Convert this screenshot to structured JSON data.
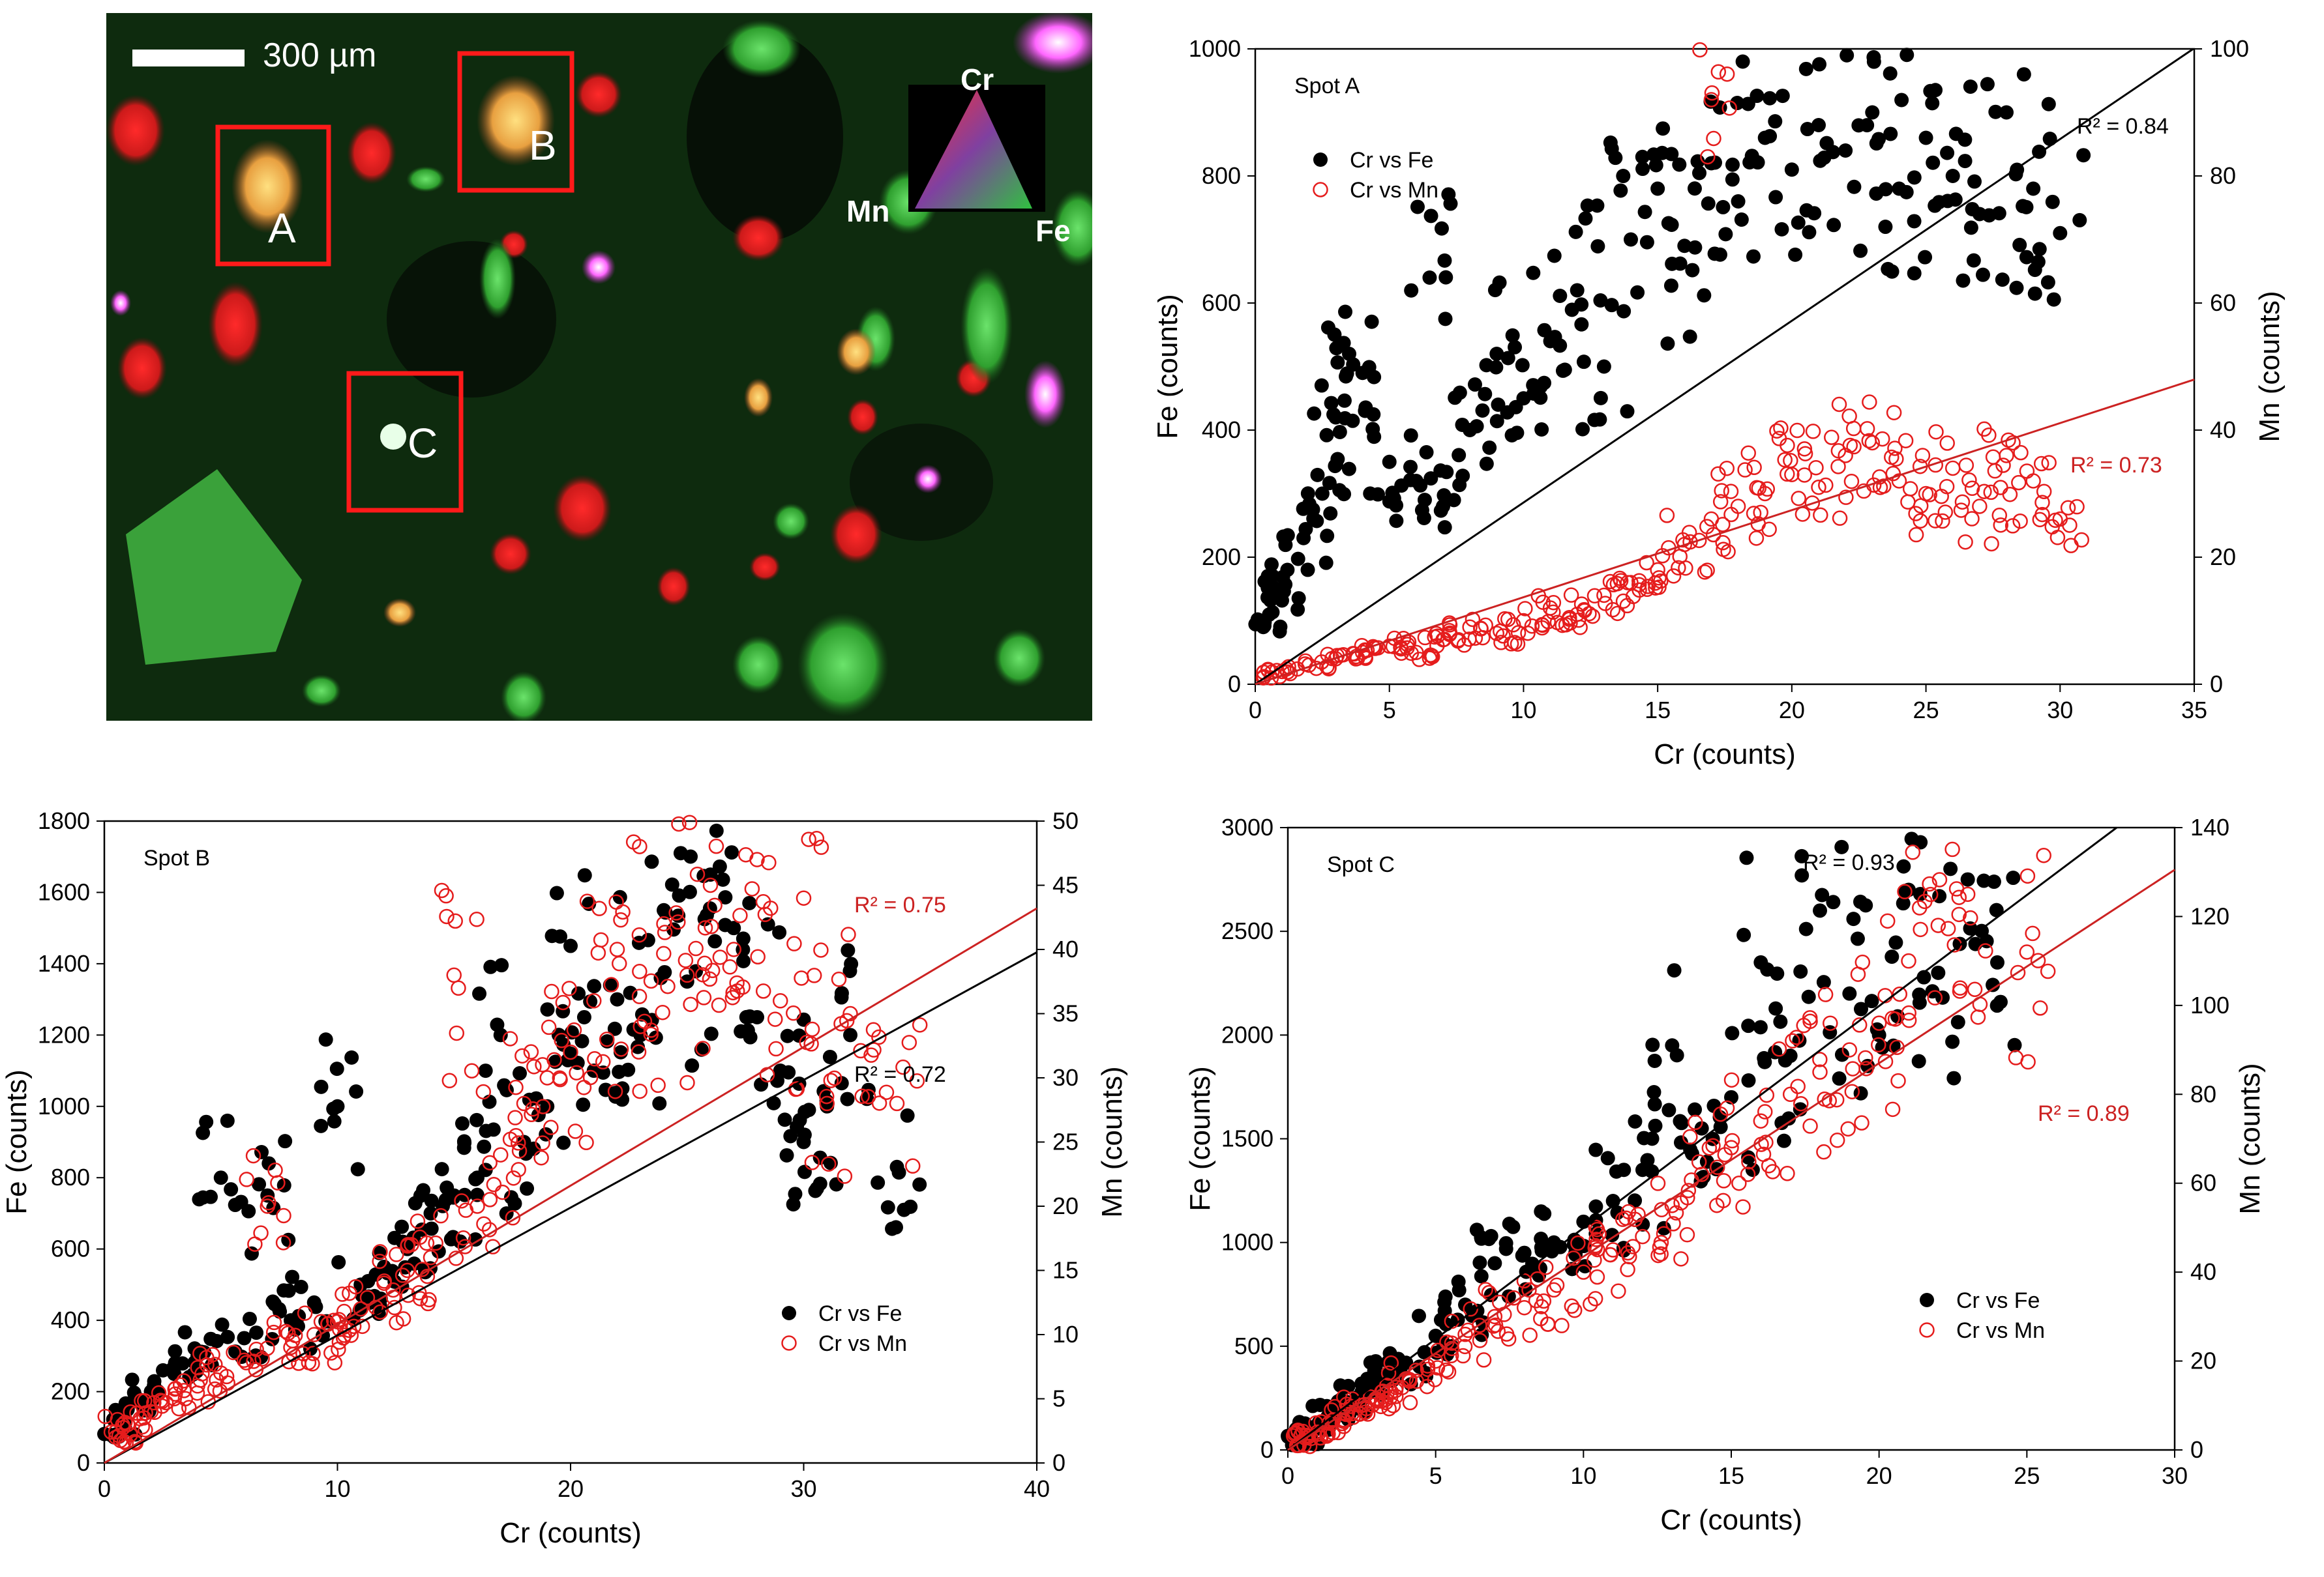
{
  "colors": {
    "fe_marker": "#000000",
    "mn_marker": "#e51c1c",
    "fe_line": "#000000",
    "mn_line": "#cc2222",
    "box": "#ff1a1a",
    "map_bg": "#0d2a0d"
  },
  "map": {
    "scale_label": "300 µm",
    "spot_labels": [
      "A",
      "B",
      "C"
    ],
    "legend": {
      "top": "Cr",
      "left": "Mn",
      "right": "Fe"
    }
  },
  "chart_data": [
    {
      "id": "A",
      "type": "scatter",
      "title": "Spot A",
      "xlabel": "Cr (counts)",
      "ylabel": "Fe (counts)",
      "y2label": "Mn (counts)",
      "xlim": [
        0,
        35
      ],
      "xticks": [
        0,
        5,
        10,
        15,
        20,
        25,
        30,
        35
      ],
      "ylim": [
        0,
        1000
      ],
      "yticks": [
        0,
        200,
        400,
        600,
        800,
        1000
      ],
      "y2lim": [
        0,
        100
      ],
      "y2ticks": [
        0,
        20,
        40,
        60,
        80,
        100
      ],
      "legend": [
        "Cr vs Fe",
        "Cr vs Mn"
      ],
      "legend_position": "top-left",
      "r2": {
        "fe": "R² = 0.84",
        "mn": "R² = 0.73"
      },
      "series": [
        {
          "name": "Cr vs Fe",
          "axis": "left",
          "marker": "filled",
          "fit": {
            "slope": 28.6,
            "intercept": 0
          },
          "points": [
            [
              0.3,
              90
            ],
            [
              0.8,
              140
            ],
            [
              1.2,
              180
            ],
            [
              1.8,
              230
            ],
            [
              2.5,
              300
            ],
            [
              3.0,
              420
            ],
            [
              3.5,
              520
            ],
            [
              4.0,
              490
            ],
            [
              5.0,
              350
            ],
            [
              6.0,
              320
            ],
            [
              6.5,
              640
            ],
            [
              7.0,
              280
            ],
            [
              8.0,
              400
            ],
            [
              9.0,
              520
            ],
            [
              10.0,
              450
            ],
            [
              11.0,
              540
            ],
            [
              12.0,
              620
            ],
            [
              13.0,
              500
            ],
            [
              14.0,
              700
            ],
            [
              15.0,
              780
            ],
            [
              16.0,
              690
            ],
            [
              17.0,
              820
            ],
            [
              18.0,
              760
            ],
            [
              19.0,
              860
            ],
            [
              20.0,
              810
            ],
            [
              21.0,
              880
            ],
            [
              22.0,
              840
            ],
            [
              23.0,
              900
            ],
            [
              24.0,
              780
            ],
            [
              25.0,
              860
            ],
            [
              26.0,
              800
            ],
            [
              27.0,
              740
            ],
            [
              28.0,
              900
            ],
            [
              29.0,
              780
            ],
            [
              30.0,
              710
            ]
          ]
        },
        {
          "name": "Cr vs Mn",
          "axis": "right",
          "marker": "open",
          "fit": {
            "slope": 1.37,
            "intercept": 0
          },
          "points": [
            [
              0.3,
              1
            ],
            [
              1.0,
              2
            ],
            [
              2.0,
              3
            ],
            [
              3.0,
              4
            ],
            [
              4.0,
              5
            ],
            [
              5.0,
              6
            ],
            [
              6.0,
              5
            ],
            [
              7.0,
              7
            ],
            [
              8.0,
              9
            ],
            [
              9.0,
              8
            ],
            [
              10.0,
              10
            ],
            [
              11.0,
              12
            ],
            [
              12.0,
              11
            ],
            [
              13.0,
              14
            ],
            [
              14.0,
              16
            ],
            [
              15.0,
              18
            ],
            [
              16.0,
              22
            ],
            [
              17.0,
              26
            ],
            [
              17.0,
              92
            ],
            [
              18.0,
              28
            ],
            [
              19.0,
              30
            ],
            [
              20.0,
              33
            ],
            [
              21.0,
              31
            ],
            [
              22.0,
              36
            ],
            [
              23.0,
              38
            ],
            [
              24.0,
              32
            ],
            [
              25.0,
              30
            ],
            [
              26.0,
              34
            ],
            [
              27.0,
              28
            ],
            [
              28.0,
              36
            ],
            [
              29.0,
              32
            ],
            [
              30.0,
              26
            ]
          ]
        }
      ]
    },
    {
      "id": "B",
      "type": "scatter",
      "title": "Spot B",
      "xlabel": "Cr (counts)",
      "ylabel": "Fe (counts)",
      "y2label": "Mn (counts)",
      "xlim": [
        0,
        40
      ],
      "xticks": [
        0,
        10,
        20,
        30,
        40
      ],
      "ylim": [
        0,
        1800
      ],
      "yticks": [
        0,
        200,
        400,
        600,
        800,
        1000,
        1200,
        1400,
        1600,
        1800
      ],
      "y2lim": [
        0,
        50
      ],
      "y2ticks": [
        0,
        5,
        10,
        15,
        20,
        25,
        30,
        35,
        40,
        45,
        50
      ],
      "legend": [
        "Cr vs Fe",
        "Cr vs Mn"
      ],
      "legend_position": "bottom-right",
      "r2": {
        "fe": "R² = 0.72",
        "mn": "R² = 0.75"
      },
      "series": [
        {
          "name": "Cr vs Fe",
          "axis": "left",
          "marker": "filled",
          "fit": {
            "slope": 35.8,
            "intercept": 0
          },
          "points": [
            [
              0.5,
              80
            ],
            [
              1.0,
              150
            ],
            [
              2.0,
              200
            ],
            [
              3.0,
              250
            ],
            [
              4.0,
              300
            ],
            [
              5.0,
              800
            ],
            [
              6.0,
              350
            ],
            [
              7.0,
              750
            ],
            [
              8.0,
              400
            ],
            [
              9.0,
              450
            ],
            [
              10.0,
              1000
            ],
            [
              11.0,
              500
            ],
            [
              12.0,
              550
            ],
            [
              13.0,
              600
            ],
            [
              14.0,
              700
            ],
            [
              15.0,
              750
            ],
            [
              16.0,
              800
            ],
            [
              17.0,
              1200
            ],
            [
              18.0,
              900
            ],
            [
              19.0,
              1000
            ],
            [
              20.0,
              1450
            ],
            [
              21.0,
              1100
            ],
            [
              22.0,
              1300
            ],
            [
              23.0,
              1200
            ],
            [
              24.0,
              1550
            ],
            [
              25.0,
              1350
            ],
            [
              26.0,
              1650
            ],
            [
              27.0,
              1500
            ],
            [
              28.0,
              1250
            ],
            [
              29.0,
              1100
            ],
            [
              30.0,
              900
            ],
            [
              31.0,
              1000
            ],
            [
              32.0,
              1200
            ],
            [
              34.0,
              830
            ]
          ]
        },
        {
          "name": "Cr vs Mn",
          "axis": "right",
          "marker": "open",
          "fit": {
            "slope": 1.08,
            "intercept": 0
          },
          "points": [
            [
              0.5,
              2
            ],
            [
              1.0,
              3
            ],
            [
              2.0,
              4
            ],
            [
              3.0,
              5
            ],
            [
              4.0,
              6
            ],
            [
              5.0,
              7
            ],
            [
              6.0,
              8
            ],
            [
              7.0,
              20
            ],
            [
              8.0,
              9
            ],
            [
              9.0,
              10
            ],
            [
              10.0,
              11
            ],
            [
              11.0,
              12
            ],
            [
              12.0,
              14
            ],
            [
              13.0,
              15
            ],
            [
              14.0,
              16
            ],
            [
              15.0,
              38
            ],
            [
              16.0,
              20
            ],
            [
              17.0,
              24
            ],
            [
              18.0,
              28
            ],
            [
              19.0,
              30
            ],
            [
              20.0,
              32
            ],
            [
              21.0,
              36
            ],
            [
              22.0,
              40
            ],
            [
              23.0,
              34
            ],
            [
              24.0,
              42
            ],
            [
              25.0,
              38
            ],
            [
              26.0,
              45
            ],
            [
              27.0,
              40
            ],
            [
              28.0,
              47
            ],
            [
              29.0,
              36
            ],
            [
              30.0,
              44
            ],
            [
              31.0,
              28
            ],
            [
              32.0,
              35
            ],
            [
              34.0,
              28
            ]
          ]
        }
      ]
    },
    {
      "id": "C",
      "type": "scatter",
      "title": "Spot C",
      "xlabel": "Cr (counts)",
      "ylabel": "Fe (counts)",
      "y2label": "Mn (counts)",
      "xlim": [
        0,
        30
      ],
      "xticks": [
        0,
        5,
        10,
        15,
        20,
        25,
        30
      ],
      "ylim": [
        0,
        3000
      ],
      "yticks": [
        0,
        500,
        1000,
        1500,
        2000,
        2500,
        3000
      ],
      "y2lim": [
        0,
        140
      ],
      "y2ticks": [
        0,
        20,
        40,
        60,
        80,
        100,
        120,
        140
      ],
      "legend": [
        "Cr vs Fe",
        "Cr vs Mn"
      ],
      "legend_position": "bottom-right",
      "r2": {
        "fe": "R² = 0.93",
        "mn": "R² = 0.89"
      },
      "series": [
        {
          "name": "Cr vs Fe",
          "axis": "left",
          "marker": "filled",
          "fit": {
            "slope": 107,
            "intercept": 0
          },
          "points": [
            [
              0.3,
              30
            ],
            [
              0.7,
              80
            ],
            [
              1.0,
              120
            ],
            [
              1.5,
              180
            ],
            [
              2.0,
              220
            ],
            [
              2.5,
              280
            ],
            [
              3.0,
              320
            ],
            [
              3.5,
              360
            ],
            [
              4.0,
              420
            ],
            [
              5.0,
              550
            ],
            [
              6.0,
              700
            ],
            [
              7.0,
              900
            ],
            [
              8.0,
              950
            ],
            [
              9.0,
              1000
            ],
            [
              10.0,
              1100
            ],
            [
              11.0,
              1200
            ],
            [
              12.0,
              1350
            ],
            [
              13.0,
              1950
            ],
            [
              14.0,
              1550
            ],
            [
              15.0,
              1700
            ],
            [
              16.0,
              2350
            ],
            [
              17.0,
              1900
            ],
            [
              18.0,
              2600
            ],
            [
              19.0,
              2200
            ],
            [
              20.0,
              2000
            ],
            [
              21.0,
              2700
            ],
            [
              22.0,
              2300
            ],
            [
              23.0,
              2750
            ],
            [
              24.0,
              2350
            ]
          ]
        },
        {
          "name": "Cr vs Mn",
          "axis": "right",
          "marker": "open",
          "fit": {
            "slope": 4.35,
            "intercept": 0
          },
          "points": [
            [
              0.3,
              1
            ],
            [
              0.7,
              3
            ],
            [
              1.0,
              4
            ],
            [
              1.5,
              6
            ],
            [
              2.0,
              8
            ],
            [
              2.5,
              10
            ],
            [
              3.0,
              11
            ],
            [
              3.5,
              13
            ],
            [
              4.0,
              16
            ],
            [
              5.0,
              20
            ],
            [
              6.0,
              26
            ],
            [
              7.0,
              30
            ],
            [
              8.0,
              32
            ],
            [
              9.0,
              36
            ],
            [
              10.0,
              40
            ],
            [
              11.0,
              45
            ],
            [
              12.0,
              48
            ],
            [
              13.0,
              55
            ],
            [
              14.0,
              62
            ],
            [
              15.0,
              68
            ],
            [
              16.0,
              74
            ],
            [
              17.0,
              80
            ],
            [
              18.0,
              85
            ],
            [
              19.0,
              90
            ],
            [
              20.0,
              96
            ],
            [
              21.0,
              110
            ],
            [
              22.0,
              118
            ],
            [
              23.0,
              125
            ],
            [
              25.0,
              112
            ]
          ]
        }
      ]
    }
  ]
}
